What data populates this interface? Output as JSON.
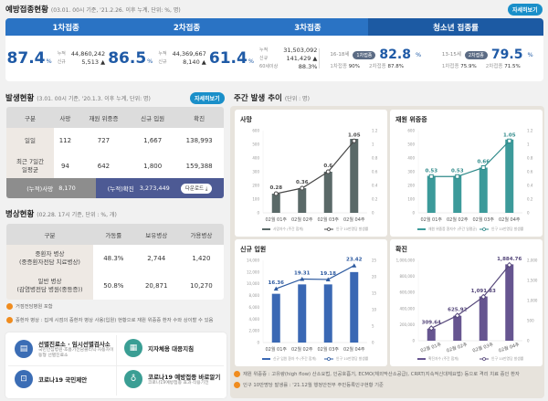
{
  "vaccination": {
    "title": "예방접종현황",
    "subtitle": "(03.01. 00시 기준, '21.2.26. 이후 누계, 단위: %, 명)",
    "detail_button": "자세히보기",
    "tabs": [
      "1차접종",
      "2차접종",
      "3차접종",
      "청소년 접종률"
    ],
    "doses": [
      {
        "rate": "87.4",
        "unit": "%",
        "cum_label": "누적",
        "cum": "44,860,242",
        "new_label": "신규",
        "new": "5,513 ▲"
      },
      {
        "rate": "86.5",
        "unit": "%",
        "cum_label": "누적",
        "cum": "44,369,667",
        "new_label": "신규",
        "new": "8,140 ▲"
      },
      {
        "rate": "61.4",
        "unit": "%",
        "cum_label": "누적",
        "cum": "31,503,092",
        "new_label": "신규",
        "new": "141,429 ▲",
        "elder_label": "60세이상",
        "elder": "88.3%"
      }
    ],
    "youth": [
      {
        "age": "16-18세",
        "badge": "1차접종",
        "rate": "82.8",
        "unit": "%",
        "d1_label": "1차접종",
        "d1": "90%",
        "d2_label": "2차접종",
        "d2": "87.8%"
      },
      {
        "age": "13-15세",
        "badge": "2차접종",
        "rate": "79.5",
        "unit": "%",
        "d1_label": "1차접종",
        "d1": "75.9%",
        "d2_label": "2차접종",
        "d2": "71.5%"
      }
    ]
  },
  "occurrence": {
    "title": "발생현황",
    "subtitle": "(3.01. 00시 기준, '20.1.3. 이후 누계, 단위: 명)",
    "detail_button": "자세히보기",
    "headers": [
      "구분",
      "사망",
      "재원 위중증",
      "신규 입원",
      "확진"
    ],
    "rows": [
      {
        "label": "일일",
        "values": [
          "112",
          "727",
          "1,667",
          "138,993"
        ]
      },
      {
        "label": "최근 7일간 일평균",
        "values": [
          "94",
          "642",
          "1,800",
          "159,388"
        ]
      }
    ],
    "total_death_label": "(누적)사망",
    "total_death": "8,170",
    "total_confirmed_label": "(누적)확진",
    "total_confirmed": "3,273,449",
    "download_button": "다운로드 ⤓"
  },
  "beds": {
    "title": "병상현황",
    "subtitle": "(02.28. 17시 기준, 단위 : %, 개)",
    "headers": [
      "구분",
      "가동률",
      "보유병상",
      "가용병상"
    ],
    "rows": [
      {
        "label1": "중환자 병상",
        "label2": "(중증환자전담 치료병상)",
        "values": [
          "48.3%",
          "2,744",
          "1,420"
        ]
      },
      {
        "label1": "일반 병상",
        "label2": "(감염병전담 병원(중등증))",
        "values": [
          "50.8%",
          "20,871",
          "10,270"
        ]
      }
    ],
    "notes": [
      "거점전담병원 포함",
      "중환자 병상 : 집계 시점의 중환자 병상 사용(입원) 현황으로 재원 위중증 환자 수와 상이할 수 있음"
    ]
  },
  "links": [
    {
      "title": "선별진료소 · 임시선별검사소",
      "sub": "국민안심병원·호흡기전담클리닉·자동차이동형 선별진료소",
      "icon": "clipboard-icon",
      "color": "#3b6db5"
    },
    {
      "title": "지자체용 대응지침",
      "sub": "",
      "icon": "building-icon",
      "color": "#3a9e94"
    },
    {
      "title": "코로나19 국민제안",
      "sub": "",
      "icon": "person-board-icon",
      "color": "#3b6db5"
    },
    {
      "title": "코로나19 예방접종 바로알기",
      "sub": "코로나19예방접종 효과·작용기전",
      "icon": "stethoscope-icon",
      "color": "#3a9e94"
    }
  ],
  "weekly": {
    "title": "주간 발생 추이",
    "subtitle": "(단위 : 명)",
    "notes": [
      "재원 위중증 : 고유량(high flow) 산소요법, 인공호흡기, ECMO(체외막산소공급), CRRT(지속적신대체요법) 등으로 격리 치료 중인 환자",
      "인구 10만명당 발생률 : '21.12월 행정안전부 주민등록인구현황 기준"
    ]
  },
  "chart_data": [
    {
      "type": "bar+line",
      "title": "사망",
      "categories": [
        "02월 01주",
        "02월 02주",
        "02월 03주",
        "02월 04주"
      ],
      "bar_series": {
        "name": "사망자수 (주간 합계)",
        "values": [
          140,
          180,
          300,
          540
        ],
        "color": "#5a6968"
      },
      "line_series": {
        "name": "인구 10만명당 발생률",
        "values": [
          0.28,
          0.36,
          0.6,
          1.05
        ],
        "labels": [
          "0.28",
          "0.36",
          "0.6",
          "1.05"
        ],
        "color": "#4a4a4a",
        "marker": "circle"
      },
      "ylim_left": [
        0,
        600
      ],
      "yticks_left": [
        "0",
        "100",
        "200",
        "300",
        "400",
        "500",
        "600"
      ],
      "ylim_right": [
        0,
        1.2
      ],
      "yticks_right": [
        "0",
        "0.2",
        "0.4",
        "0.6",
        "0.8",
        "1",
        "1.2"
      ],
      "rotate_x": false,
      "grid": false,
      "legend": "bottom"
    },
    {
      "type": "bar+line",
      "title": "재원 위중증",
      "categories": [
        "02월 01주",
        "02월 02주",
        "02월 03주",
        "02월 04주"
      ],
      "bar_series": {
        "name": "재원 위중증 환자수 (주간 일평균)",
        "values": [
          270,
          270,
          330,
          535
        ],
        "color": "#3c9a9a"
      },
      "line_series": {
        "name": "인구 10만명당 발생률",
        "values": [
          0.53,
          0.53,
          0.66,
          1.05
        ],
        "labels": [
          "0.53",
          "0.53",
          "0.66",
          "1.05"
        ],
        "color": "#2f8a8a",
        "marker": "square"
      },
      "ylim_left": [
        0,
        600
      ],
      "yticks_left": [
        "0",
        "100",
        "200",
        "300",
        "400",
        "500",
        "600"
      ],
      "ylim_right": [
        0,
        1.2
      ],
      "yticks_right": [
        "0",
        "0.2",
        "0.4",
        "0.6",
        "0.8",
        "1",
        "1.2"
      ],
      "rotate_x": false,
      "grid": false,
      "legend": "bottom"
    },
    {
      "type": "bar+line",
      "title": "신규 입원",
      "categories": [
        "02월 01주",
        "02월 02주",
        "02월 03주",
        "02월 04주"
      ],
      "bar_series": {
        "name": "신규 입원 환자 수 (주간 합계)",
        "values": [
          8300,
          9900,
          9900,
          12000
        ],
        "color": "#3a68b4"
      },
      "line_series": {
        "name": "인구 10만명당 발생률",
        "values": [
          16.36,
          19.31,
          19.18,
          23.42
        ],
        "labels": [
          "16.36",
          "19.31",
          "19.18",
          "23.42"
        ],
        "color": "#2d5aa0",
        "marker": "triangle"
      },
      "ylim_left": [
        0,
        14000
      ],
      "yticks_left": [
        "0",
        "2,000",
        "4,000",
        "6,000",
        "8,000",
        "10,000",
        "12,000",
        "14,000"
      ],
      "ylim_right": [
        0,
        25
      ],
      "yticks_right": [
        "0",
        "5",
        "10",
        "15",
        "20",
        "25"
      ],
      "rotate_x": false,
      "grid": false,
      "legend": "bottom"
    },
    {
      "type": "bar+line",
      "title": "확진",
      "categories": [
        "02월 01주",
        "02월 02주",
        "02월 03주",
        "02월 04주"
      ],
      "bar_series": {
        "name": "확진자수 (주간 합계)",
        "values": [
          150000,
          310000,
          550000,
          950000
        ],
        "color": "#665590"
      },
      "line_series": {
        "name": "인구 10만명당 발생률",
        "values": [
          309.64,
          625.92,
          1091.83,
          1884.76
        ],
        "labels": [
          "309.64",
          "625.92",
          "1,091.83",
          "1,884.76"
        ],
        "color": "#55477a",
        "marker": "diamond"
      },
      "ylim_left": [
        0,
        1000000
      ],
      "yticks_left": [
        "0",
        "200,000",
        "400,000",
        "600,000",
        "800,000",
        "1,000,000"
      ],
      "ylim_right": [
        0,
        2000
      ],
      "yticks_right": [
        "0",
        "500",
        "1,000",
        "1,500",
        "2,000"
      ],
      "rotate_x": true,
      "grid": false,
      "legend": "bottom"
    }
  ]
}
